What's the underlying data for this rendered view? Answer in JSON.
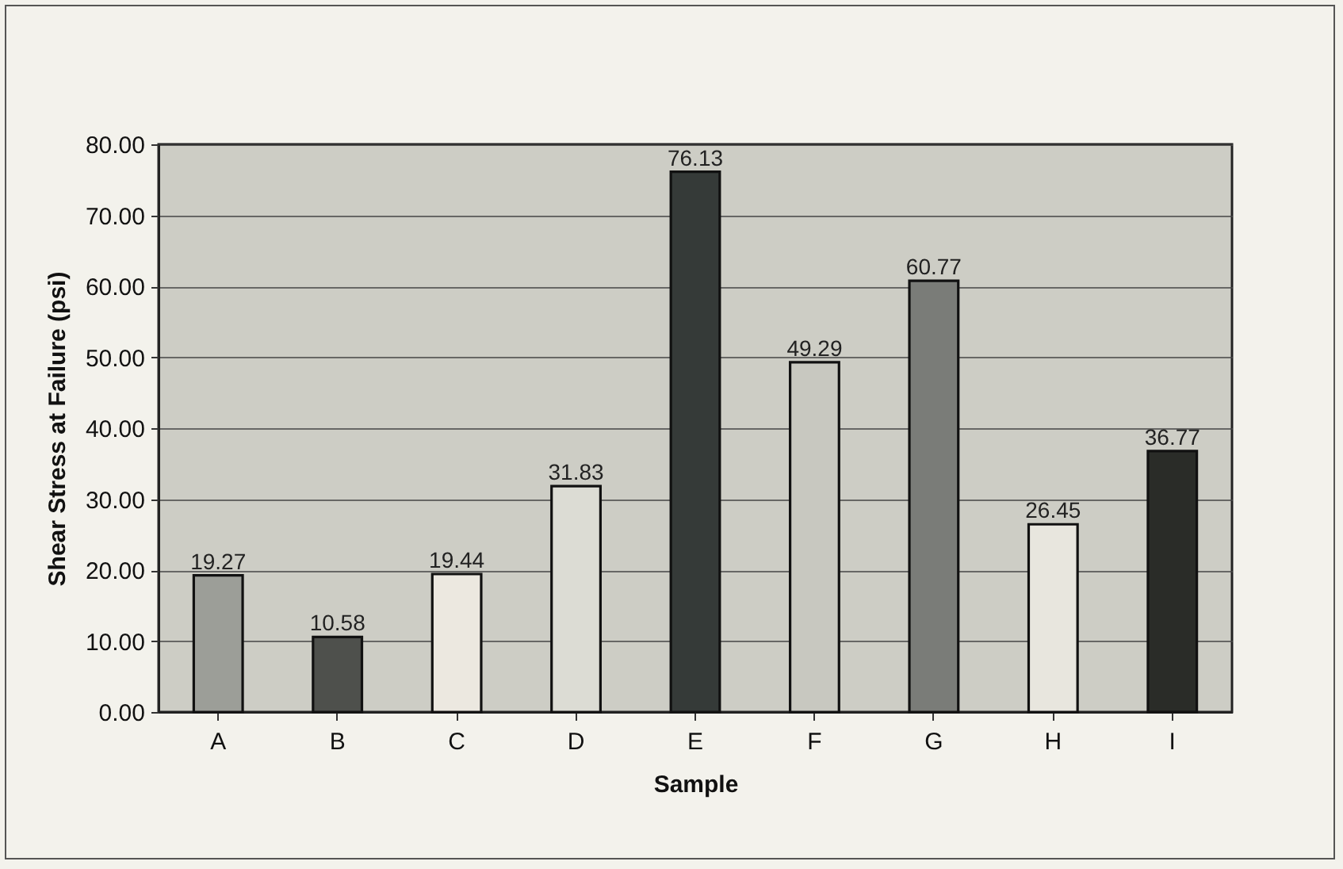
{
  "chart_data": {
    "type": "bar",
    "xlabel": "Sample",
    "ylabel": "Shear Stress at Failure (psi)",
    "categories": [
      "A",
      "B",
      "C",
      "D",
      "E",
      "F",
      "G",
      "H",
      "I"
    ],
    "values": [
      19.27,
      10.58,
      19.44,
      31.83,
      76.13,
      49.29,
      60.77,
      26.45,
      36.77
    ],
    "colors": [
      "#9c9e98",
      "#4e504c",
      "#ece8e0",
      "#dcdcd4",
      "#353a38",
      "#c8c8c0",
      "#7a7c78",
      "#e8e6de",
      "#2a2c28"
    ],
    "ylim": [
      0,
      80
    ],
    "yticks": [
      {
        "value": 0,
        "label": "0.00"
      },
      {
        "value": 10,
        "label": "10.00"
      },
      {
        "value": 20,
        "label": "20.00"
      },
      {
        "value": 30,
        "label": "30.00"
      },
      {
        "value": 40,
        "label": "40.00"
      },
      {
        "value": 50,
        "label": "50.00"
      },
      {
        "value": 60,
        "label": "60.00"
      },
      {
        "value": 70,
        "label": "70.00"
      },
      {
        "value": 80,
        "label": "80.00"
      }
    ],
    "grid": "y",
    "data_labels": true
  }
}
